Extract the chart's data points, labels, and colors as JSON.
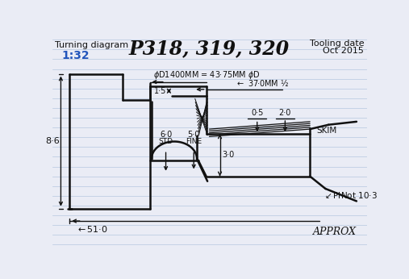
{
  "title": "P318, 319, 320",
  "subtitle_left": "Turning diagram",
  "subtitle_left2": "1:32",
  "tooling_date": "Tooling date",
  "tooling_date2": "Oct 2015",
  "bg_color": "#eaecf5",
  "line_color": "#111111",
  "blue_color": "#2255bb",
  "figsize": [
    5.07,
    3.46
  ],
  "dpi": 100,
  "line_colors": {
    "paper": "#a0b8d8",
    "drawing": "#111111"
  }
}
